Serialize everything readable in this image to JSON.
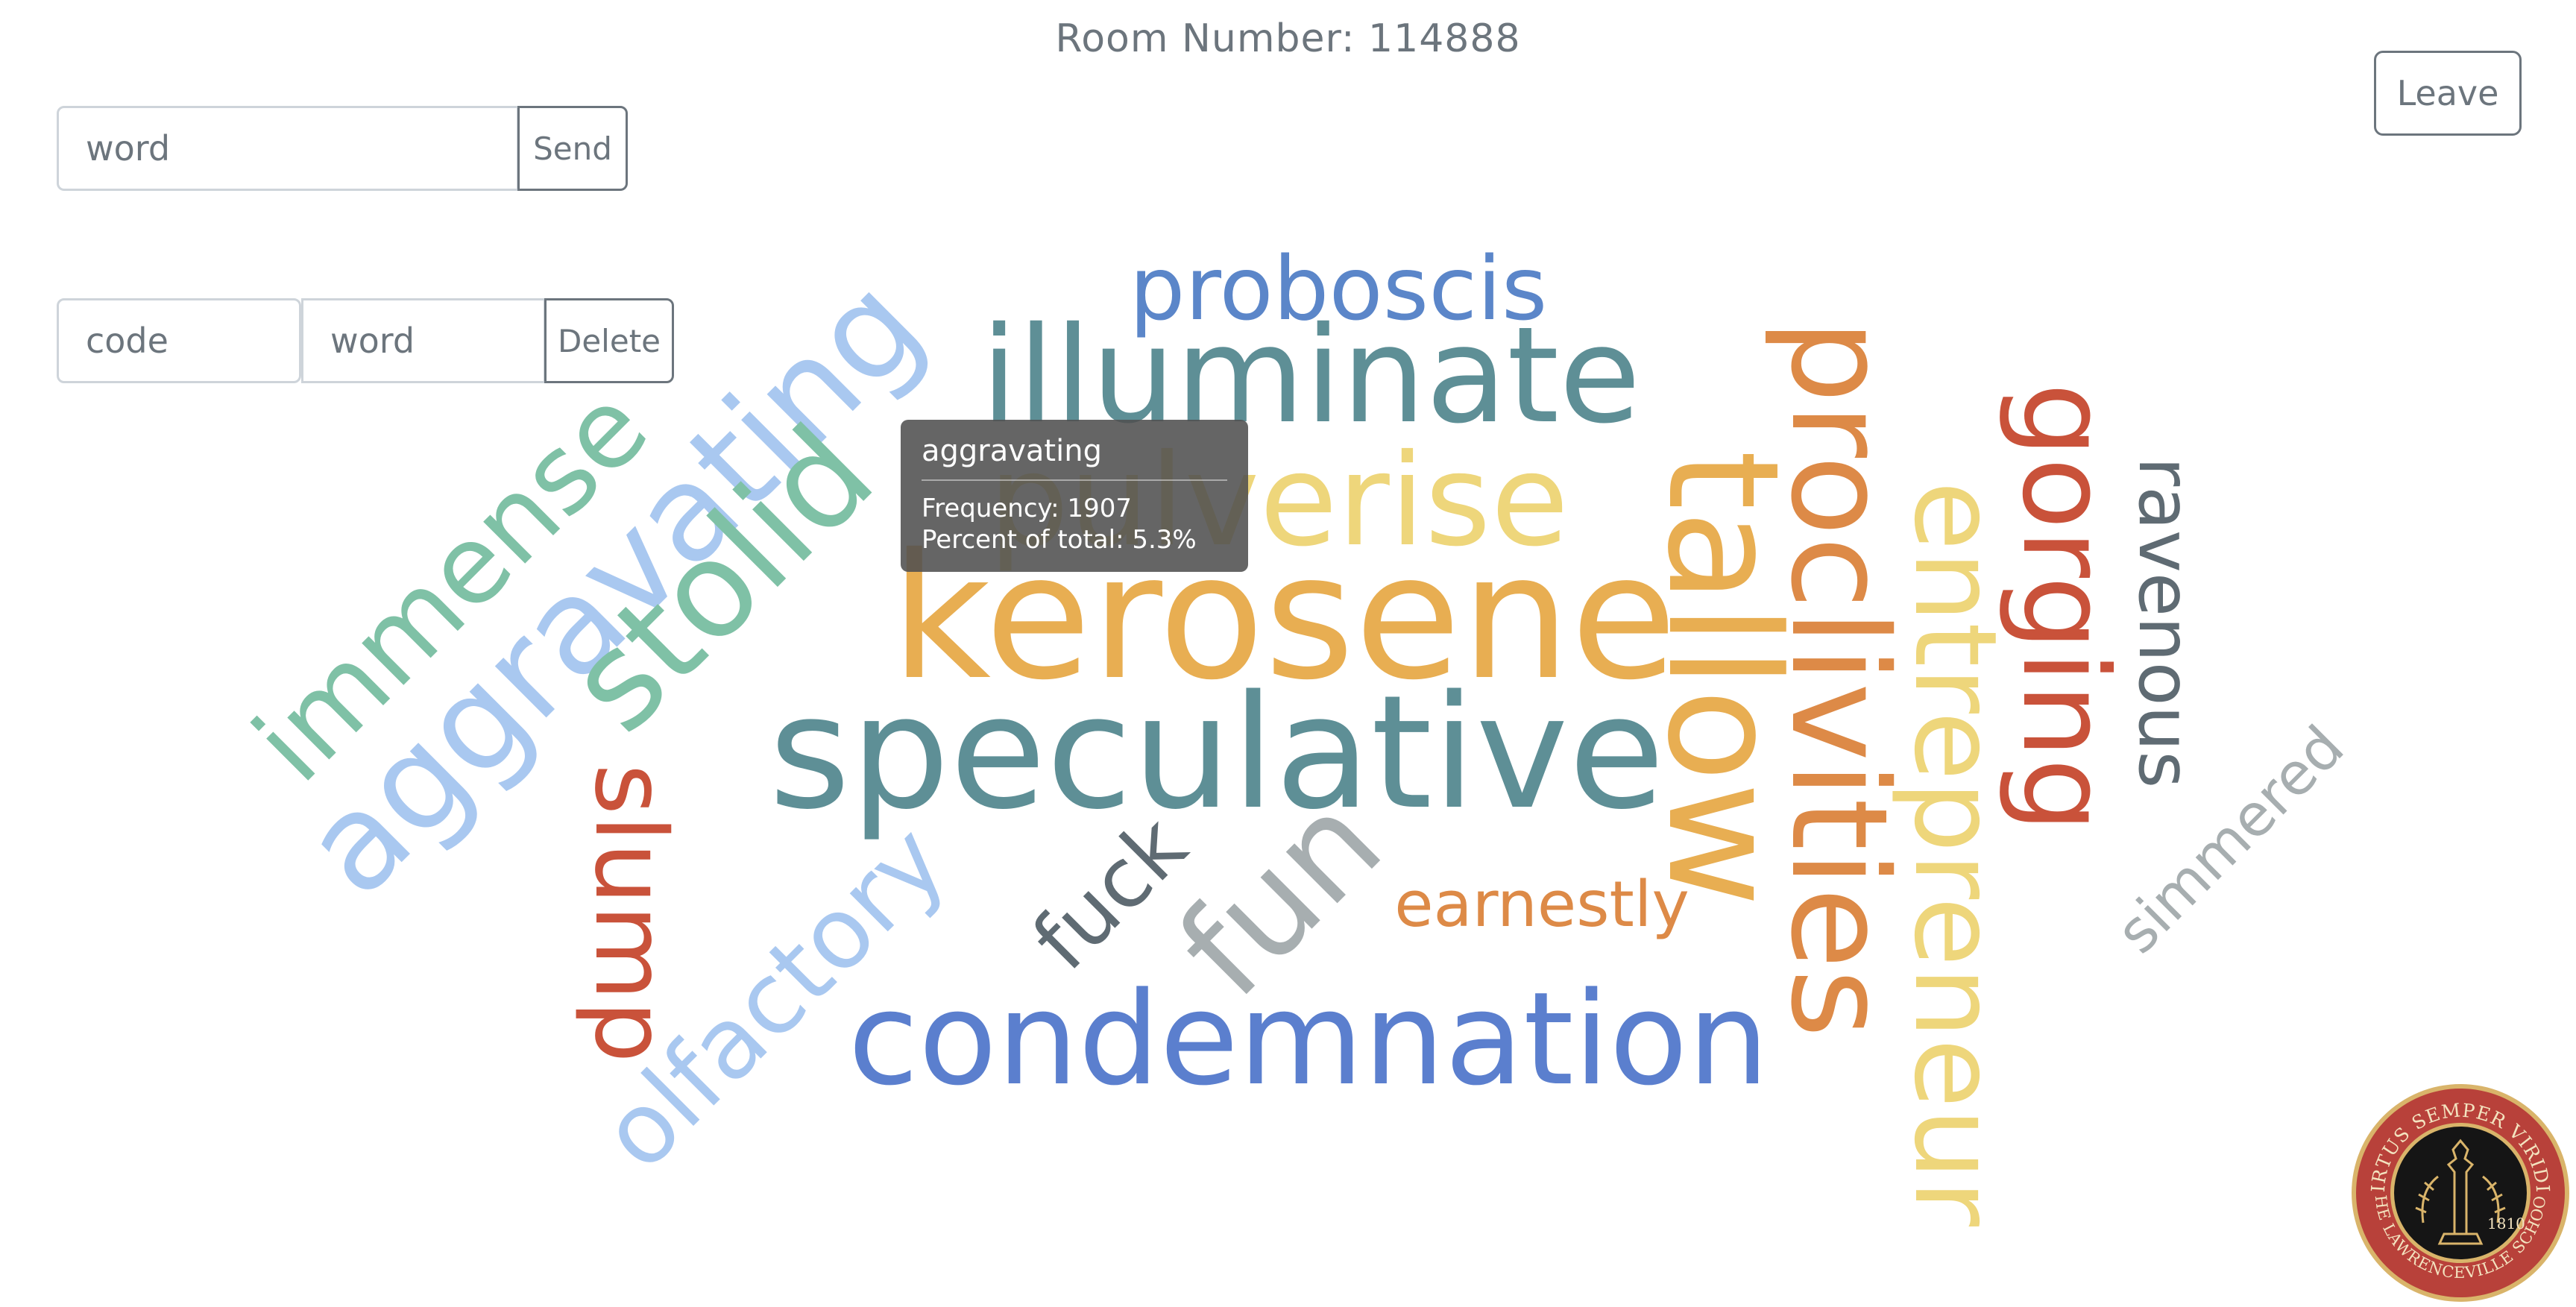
{
  "header": {
    "room_label": "Room Number: 114888"
  },
  "send_form": {
    "word_placeholder": "word",
    "send_label": "Send"
  },
  "delete_form": {
    "code_placeholder": "code",
    "word_placeholder": "word",
    "delete_label": "Delete"
  },
  "leave_label": "Leave",
  "cloud": {
    "words": [
      {
        "text": "proboscis",
        "color": "#5b86c9"
      },
      {
        "text": "illuminate",
        "color": "#5e8f96"
      },
      {
        "text": "pulverise",
        "color": "#eed67b"
      },
      {
        "text": "kerosene",
        "color": "#e8ae52"
      },
      {
        "text": "speculative",
        "color": "#5e8f96"
      },
      {
        "text": "immense",
        "color": "#7fc1a6"
      },
      {
        "text": "aggravating",
        "color": "#a9c8f0"
      },
      {
        "text": "stolid",
        "color": "#7fc1a6"
      },
      {
        "text": "slump",
        "color": "#c9523a"
      },
      {
        "text": "olfactory",
        "color": "#a9c8f0"
      },
      {
        "text": "fuck",
        "color": "#5f6b73"
      },
      {
        "text": "fun",
        "color": "#a7aeb0"
      },
      {
        "text": "earnestly",
        "color": "#dd8a47"
      },
      {
        "text": "condemnation",
        "color": "#5b7fce"
      },
      {
        "text": "tallow",
        "color": "#e8ae52"
      },
      {
        "text": "proclivities",
        "color": "#dd8a47"
      },
      {
        "text": "entrepreneur",
        "color": "#eed67b"
      },
      {
        "text": "gorging",
        "color": "#c9523a"
      },
      {
        "text": "ravenous",
        "color": "#5f6b73"
      },
      {
        "text": "simmered",
        "color": "#a7aeb0"
      }
    ]
  },
  "tooltip": {
    "title": "aggravating",
    "frequency_line": "Frequency: 1907",
    "percent_line": "Percent of total: 5.3%"
  },
  "seal": {
    "motto": "VIRTUS SEMPER VIRIDIS",
    "school": "THE LAWRENCEVILLE SCHOOL",
    "year": "1810",
    "colors": {
      "ring": "#b8413a",
      "gold": "#d9b46a",
      "center": "#151515"
    }
  }
}
